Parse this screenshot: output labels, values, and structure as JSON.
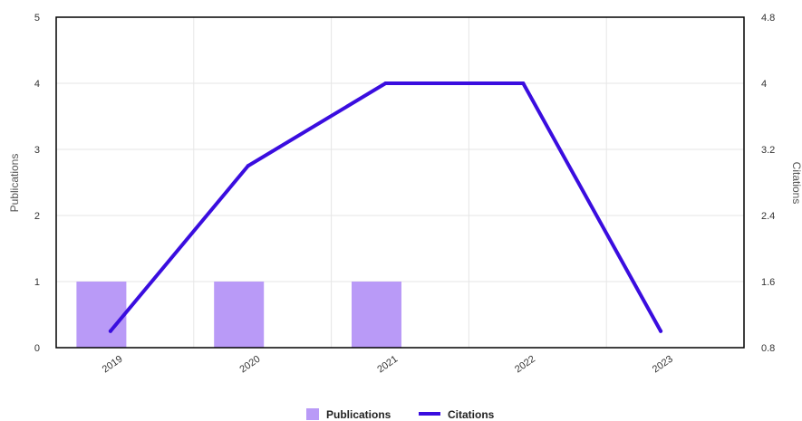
{
  "chart_data": {
    "type": "bar+line",
    "categories": [
      "2019",
      "2020",
      "2021",
      "2022",
      "2023"
    ],
    "series": [
      {
        "name": "Publications",
        "type": "bar",
        "axis": "left",
        "values": [
          1,
          1,
          1,
          0,
          0
        ],
        "color": "#b99af7"
      },
      {
        "name": "Citations",
        "type": "line",
        "axis": "right",
        "values": [
          1,
          3,
          4,
          4,
          1
        ],
        "color": "#3a0ddf"
      }
    ],
    "y_left": {
      "label": "Publications",
      "ylim": [
        0,
        5
      ],
      "ticks": [
        "0",
        "1",
        "2",
        "3",
        "4",
        "5"
      ]
    },
    "y_right": {
      "label": "Citations",
      "ylim": [
        0.8,
        4.8
      ],
      "ticks": [
        "0.8",
        "1.6",
        "2.4",
        "3.2",
        "4",
        "4.8"
      ]
    },
    "grid": true,
    "legend_position": "bottom-center",
    "x_tick_rotation": "diagonal"
  }
}
